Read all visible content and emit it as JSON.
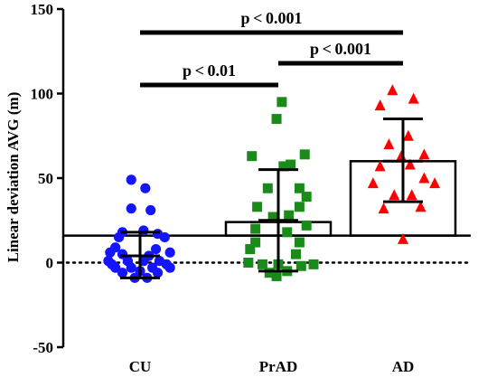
{
  "chart_data": {
    "type": "scatter",
    "ylabel": "Linear deviation AVG (m)",
    "ylim": [
      -50,
      150
    ],
    "yticks": [
      -50,
      0,
      50,
      100,
      150
    ],
    "ytick_labels": [
      "-50",
      "0",
      "50",
      "100",
      "150"
    ],
    "zero_line": "dotted",
    "reference_line": 16,
    "categories": [
      "CU",
      "PrAD",
      "AD"
    ],
    "series": [
      {
        "category": "CU",
        "marker": "circle",
        "color": "#1414ff",
        "bar_value": 16,
        "mean": 4,
        "sd_upper": 18,
        "sd_lower": -9,
        "points": [
          [
            -0.05,
            49
          ],
          [
            0.03,
            44
          ],
          [
            -0.05,
            32
          ],
          [
            0.06,
            31
          ],
          [
            -0.1,
            18
          ],
          [
            0.02,
            19
          ],
          [
            0.1,
            17
          ],
          [
            -0.12,
            15
          ],
          [
            0.14,
            15
          ],
          [
            -0.14,
            9
          ],
          [
            0.09,
            8
          ],
          [
            -0.17,
            6
          ],
          [
            0.17,
            6
          ],
          [
            -0.1,
            5
          ],
          [
            0.05,
            4
          ],
          [
            -0.18,
            1
          ],
          [
            -0.07,
            1
          ],
          [
            0.02,
            1
          ],
          [
            0.11,
            1
          ],
          [
            -0.16,
            -1
          ],
          [
            0.15,
            -1
          ],
          [
            -0.14,
            -3
          ],
          [
            -0.05,
            -3
          ],
          [
            0.07,
            -3
          ],
          [
            0.17,
            -3
          ],
          [
            -0.1,
            -6
          ],
          [
            0.0,
            -5
          ],
          [
            0.1,
            -6
          ],
          [
            -0.03,
            -9
          ],
          [
            0.04,
            -9
          ]
        ]
      },
      {
        "category": "PrAD",
        "marker": "square",
        "color": "#1a8a1a",
        "bar_value": 24,
        "mean": 25,
        "sd_upper": 55,
        "sd_lower": -5,
        "points": [
          [
            0.02,
            95
          ],
          [
            -0.01,
            85
          ],
          [
            0.15,
            64
          ],
          [
            -0.15,
            63
          ],
          [
            0.03,
            57
          ],
          [
            0.07,
            58
          ],
          [
            0.12,
            44
          ],
          [
            -0.06,
            44
          ],
          [
            0.16,
            39
          ],
          [
            -0.12,
            33
          ],
          [
            0.12,
            33
          ],
          [
            -0.03,
            27
          ],
          [
            0.06,
            28
          ],
          [
            0.16,
            22
          ],
          [
            -0.13,
            20
          ],
          [
            0.05,
            18
          ],
          [
            -0.13,
            12
          ],
          [
            0.12,
            12
          ],
          [
            0.1,
            5
          ],
          [
            -0.16,
            8
          ],
          [
            -0.17,
            0
          ],
          [
            -0.09,
            -1
          ],
          [
            0.0,
            -1
          ],
          [
            0.13,
            -2
          ],
          [
            0.2,
            -1
          ],
          [
            -0.05,
            -6
          ],
          [
            0.05,
            -5
          ],
          [
            -0.01,
            -8
          ]
        ]
      },
      {
        "category": "AD",
        "marker": "triangle",
        "color": "#ff0000",
        "bar_value": 60,
        "mean": 60,
        "sd_upper": 85,
        "sd_lower": 36,
        "points": [
          [
            -0.06,
            102
          ],
          [
            0.06,
            97
          ],
          [
            -0.13,
            93
          ],
          [
            0.03,
            75
          ],
          [
            -0.08,
            70
          ],
          [
            0.12,
            64
          ],
          [
            -0.01,
            63
          ],
          [
            -0.13,
            57
          ],
          [
            0.04,
            58
          ],
          [
            0.12,
            50
          ],
          [
            -0.17,
            47
          ],
          [
            0.18,
            47
          ],
          [
            -0.05,
            40
          ],
          [
            0.05,
            40
          ],
          [
            -0.11,
            32
          ],
          [
            0.1,
            33
          ],
          [
            0.0,
            14
          ]
        ]
      }
    ],
    "comparisons": [
      {
        "from": "CU",
        "to": "AD",
        "label": "p < 0.001"
      },
      {
        "from": "CU",
        "to": "PrAD",
        "label": "p < 0.01"
      },
      {
        "from": "PrAD",
        "to": "AD",
        "label": "p < 0.001"
      }
    ]
  }
}
